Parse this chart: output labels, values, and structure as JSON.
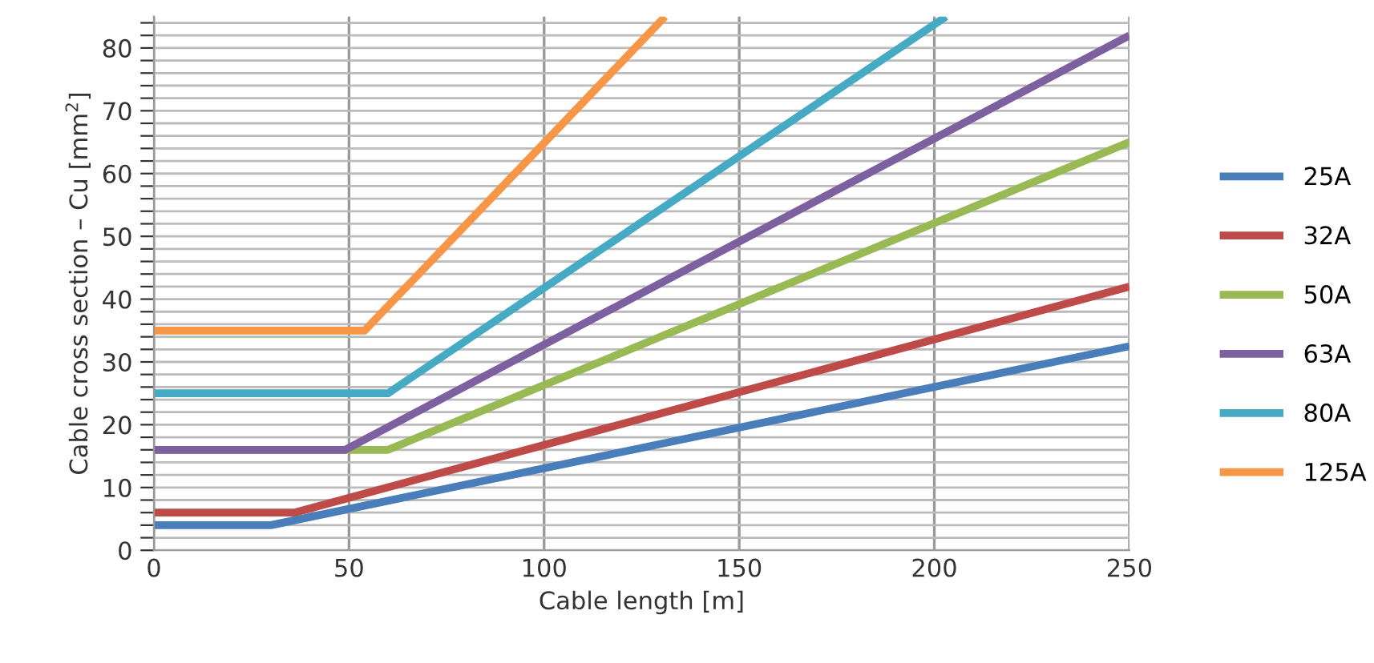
{
  "chart_data": {
    "type": "line",
    "xlabel": "Cable length [m]",
    "ylabel": "Cable cross section – Cu [mm$^{2}$]",
    "xlim": [
      0,
      250
    ],
    "xticks": [
      0,
      50,
      100,
      150,
      200,
      250
    ],
    "ylim": [
      0,
      85
    ],
    "yticks": [
      0,
      {
        "value": 2,
        "label": null
      },
      {
        "value": 4,
        "label": null
      },
      {
        "value": 6,
        "label": null
      },
      {
        "value": 8,
        "label": null
      },
      10,
      {
        "value": 12,
        "label": null
      },
      {
        "value": 14,
        "label": null
      },
      {
        "value": 16,
        "label": null
      },
      {
        "value": 18,
        "label": null
      },
      20,
      {
        "value": 22,
        "label": null
      },
      {
        "value": 24,
        "label": null
      },
      {
        "value": 26,
        "label": null
      },
      {
        "value": 28,
        "label": null
      },
      30,
      {
        "value": 32,
        "label": null
      },
      {
        "value": 34,
        "label": null
      },
      {
        "value": 36,
        "label": null
      },
      {
        "value": 38,
        "label": null
      },
      40,
      {
        "value": 42,
        "label": null
      },
      {
        "value": 44,
        "label": null
      },
      {
        "value": 46,
        "label": null
      },
      {
        "value": 48,
        "label": null
      },
      50,
      {
        "value": 52,
        "label": null
      },
      {
        "value": 54,
        "label": null
      },
      {
        "value": 56,
        "label": null
      },
      {
        "value": 58,
        "label": null
      },
      60,
      {
        "value": 62,
        "label": null
      },
      {
        "value": 64,
        "label": null
      },
      {
        "value": 66,
        "label": null
      },
      {
        "value": 68,
        "label": null
      },
      70,
      {
        "value": 72,
        "label": null
      },
      {
        "value": 74,
        "label": null
      },
      {
        "value": 76,
        "label": null
      },
      {
        "value": 78,
        "label": null
      },
      80,
      {
        "value": 82,
        "label": null
      },
      {
        "value": 84,
        "label": null
      }
    ],
    "grid": true,
    "legend": "right",
    "series": [
      {
        "name": "25A",
        "color": "#4a7ebb",
        "x": [
          0,
          30,
          250
        ],
        "values": [
          4,
          4,
          32.5
        ]
      },
      {
        "name": "32A",
        "color": "#be4b48",
        "x": [
          0,
          36,
          250
        ],
        "values": [
          6,
          6,
          42
        ]
      },
      {
        "name": "50A",
        "color": "#98b954",
        "x": [
          0,
          60,
          250
        ],
        "values": [
          16,
          16,
          65
        ]
      },
      {
        "name": "63A",
        "color": "#7d60a0",
        "x": [
          0,
          49,
          250
        ],
        "values": [
          16,
          16,
          82
        ]
      },
      {
        "name": "80A",
        "color": "#46aac5",
        "x": [
          0,
          60,
          203
        ],
        "values": [
          25,
          25,
          85
        ]
      },
      {
        "name": "125A",
        "color": "#f79646",
        "x": [
          0,
          54,
          131
        ],
        "values": [
          35,
          35,
          85
        ]
      }
    ]
  }
}
